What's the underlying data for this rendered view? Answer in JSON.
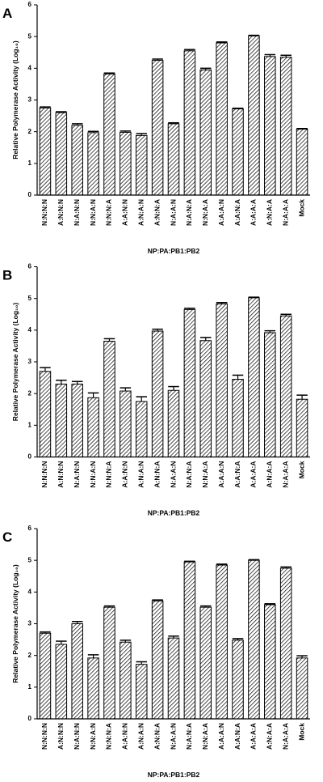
{
  "chart_data": [
    {
      "type": "bar",
      "panel": "A",
      "ylabel": "Relative Polymerase Activity (Log₁₀)",
      "xlabel": "NP:PA:PB1:PB2",
      "categories": [
        "N:N:N:N",
        "A:N:N:N",
        "N:A:N:N",
        "N:N:A:N",
        "N:N:N:A",
        "A:A:N:N",
        "A:N:A:N",
        "A:N:N:A",
        "N:A:A:N",
        "N:A:N:A",
        "N:N:A:A",
        "A:A:A:N",
        "A:A:N:A",
        "A:A:A:A",
        "A:N:A:A",
        "N:A:A:A",
        "Mock"
      ],
      "values": [
        2.75,
        2.6,
        2.2,
        1.97,
        3.82,
        1.98,
        1.88,
        4.25,
        2.25,
        4.55,
        3.95,
        4.8,
        2.72,
        5.02,
        4.37,
        4.35,
        2.08
      ],
      "errors": [
        0.03,
        0.03,
        0.05,
        0.04,
        0.03,
        0.04,
        0.06,
        0.04,
        0.03,
        0.04,
        0.05,
        0.03,
        0.02,
        0.02,
        0.06,
        0.06,
        0.02
      ],
      "ylim": [
        0,
        6
      ],
      "yticks": [
        0,
        1,
        2,
        3,
        4,
        5,
        6
      ]
    },
    {
      "type": "bar",
      "panel": "B",
      "ylabel": "Relative Polymerase Activity (Log₁₀)",
      "xlabel": "NP:PA:PB1:PB2",
      "categories": [
        "N:N:N:N",
        "A:N:N:N",
        "N:A:N:N",
        "N:N:A:N",
        "N:N:N:A",
        "A:A:N:N",
        "A:N:A:N",
        "A:N:N:A",
        "N:A:A:N",
        "N:A:N:A",
        "N:N:A:A",
        "A:A:A:N",
        "A:A:N:A",
        "A:A:A:A",
        "A:N:A:A",
        "N:A:A:A",
        "Mock"
      ],
      "values": [
        2.7,
        2.3,
        2.3,
        1.87,
        3.65,
        2.08,
        1.75,
        3.97,
        2.1,
        4.65,
        3.67,
        4.83,
        2.45,
        5.02,
        3.92,
        4.45,
        1.82
      ],
      "errors": [
        0.12,
        0.12,
        0.08,
        0.15,
        0.08,
        0.1,
        0.15,
        0.06,
        0.12,
        0.04,
        0.1,
        0.04,
        0.13,
        0.02,
        0.06,
        0.05,
        0.13
      ],
      "ylim": [
        0,
        6
      ],
      "yticks": [
        0,
        1,
        2,
        3,
        4,
        5,
        6
      ]
    },
    {
      "type": "bar",
      "panel": "C",
      "ylabel": "Relative Polymerase Activity (Log₁₀)",
      "xlabel": "NP:PA:PB1:PB2",
      "categories": [
        "N:N:N:N",
        "A:N:N:N",
        "N:A:N:N",
        "N:N:A:N",
        "N:N:N:A",
        "A:A:N:N",
        "A:N:A:N",
        "A:N:N:A",
        "N:A:A:N",
        "N:A:N:A",
        "N:N:A:A",
        "A:A:A:N",
        "A:A:N:A",
        "A:A:A:A",
        "A:N:A:A",
        "N:A:A:A",
        "Mock"
      ],
      "values": [
        2.7,
        2.35,
        3.0,
        1.92,
        3.52,
        2.42,
        1.72,
        3.72,
        2.55,
        4.95,
        3.52,
        4.85,
        2.48,
        5.0,
        3.6,
        4.75,
        1.92
      ],
      "errors": [
        0.04,
        0.1,
        0.07,
        0.1,
        0.04,
        0.06,
        0.08,
        0.03,
        0.06,
        0.02,
        0.04,
        0.03,
        0.05,
        0.02,
        0.03,
        0.04,
        0.07
      ],
      "ylim": [
        0,
        6
      ],
      "yticks": [
        0,
        1,
        2,
        3,
        4,
        5,
        6
      ]
    }
  ]
}
